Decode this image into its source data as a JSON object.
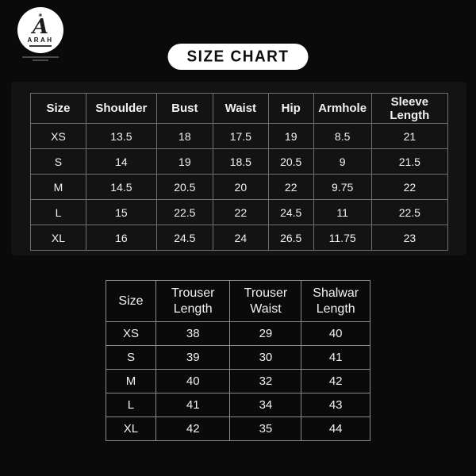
{
  "logo": {
    "brand": "ARAH",
    "monogram": "A",
    "flourish": "❀"
  },
  "title": "SIZE CHART",
  "size_chart": {
    "columns": [
      "Size",
      "Shoulder",
      "Bust",
      "Waist",
      "Hip",
      "Armhole",
      "Sleeve Length"
    ],
    "rows": [
      [
        "XS",
        "13.5",
        "18",
        "17.5",
        "19",
        "8.5",
        "21"
      ],
      [
        "S",
        "14",
        "19",
        "18.5",
        "20.5",
        "9",
        "21.5"
      ],
      [
        "M",
        "14.5",
        "20.5",
        "20",
        "22",
        "9.75",
        "22"
      ],
      [
        "L",
        "15",
        "22.5",
        "22",
        "24.5",
        "11",
        "22.5"
      ],
      [
        "XL",
        "16",
        "24.5",
        "24",
        "26.5",
        "11.75",
        "23"
      ]
    ]
  },
  "trouser_chart": {
    "columns": [
      "Size",
      "Trouser Length",
      "Trouser Waist",
      "Shalwar Length"
    ],
    "rows": [
      [
        "XS",
        "38",
        "29",
        "40"
      ],
      [
        "S",
        "39",
        "30",
        "41"
      ],
      [
        "M",
        "40",
        "32",
        "42"
      ],
      [
        "L",
        "41",
        "34",
        "43"
      ],
      [
        "XL",
        "42",
        "35",
        "44"
      ]
    ]
  },
  "colors": {
    "background": "#0a0a0a",
    "panel": "#131313",
    "table_border": "#6f6f6f",
    "text": "#f2f2f2",
    "title_bg": "#ffffff",
    "title_text": "#0d0d0d"
  }
}
